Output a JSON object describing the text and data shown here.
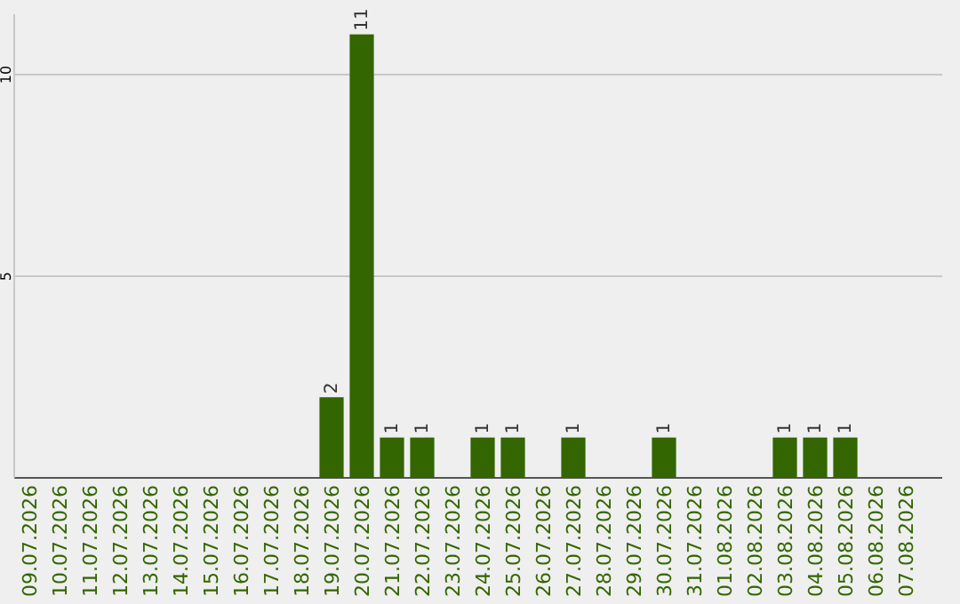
{
  "chart_data": {
    "type": "bar",
    "categories": [
      "09.07.2026",
      "10.07.2026",
      "11.07.2026",
      "12.07.2026",
      "13.07.2026",
      "14.07.2026",
      "15.07.2026",
      "16.07.2026",
      "17.07.2026",
      "18.07.2026",
      "19.07.2026",
      "20.07.2026",
      "21.07.2026",
      "22.07.2026",
      "23.07.2026",
      "24.07.2026",
      "25.07.2026",
      "26.07.2026",
      "27.07.2026",
      "28.07.2026",
      "29.07.2026",
      "30.07.2026",
      "31.07.2026",
      "01.08.2026",
      "02.08.2026",
      "03.08.2026",
      "04.08.2026",
      "05.08.2026",
      "06.08.2026",
      "07.08.2026"
    ],
    "values": [
      0,
      0,
      0,
      0,
      0,
      0,
      0,
      0,
      0,
      0,
      2,
      11,
      1,
      1,
      0,
      1,
      1,
      0,
      1,
      0,
      0,
      1,
      0,
      0,
      0,
      1,
      1,
      1,
      0,
      0
    ],
    "value_labels": [
      null,
      null,
      null,
      null,
      null,
      null,
      null,
      null,
      null,
      null,
      "2",
      "11",
      "1",
      "1",
      null,
      "1",
      "1",
      null,
      "1",
      null,
      null,
      "1",
      null,
      null,
      null,
      "1",
      "1",
      "1",
      null,
      null
    ],
    "color": "#336600",
    "ylim": [
      0,
      11.5
    ],
    "yticks": [
      5,
      10
    ],
    "grid": "y"
  }
}
